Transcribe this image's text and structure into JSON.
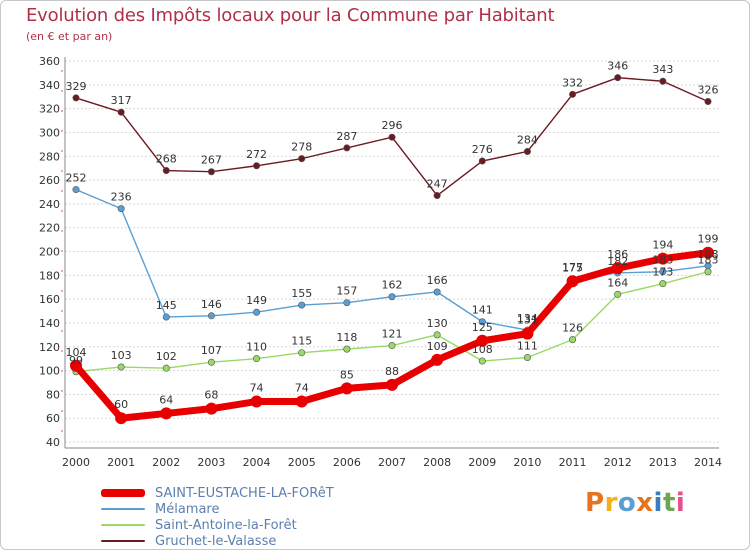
{
  "header": {
    "title": "Evolution des Impôts locaux pour la Commune par Habitant",
    "subtitle": "(en € et par an)"
  },
  "logo": {
    "text": "Proxiti",
    "colors": [
      "#e8731e",
      "#f2b01f",
      "#5a9fd4",
      "#e8731e",
      "#3a7cc0",
      "#6aa84f",
      "#e84e8a"
    ]
  },
  "chart_data": {
    "type": "line",
    "title": "Evolution des Impôts locaux pour la Commune par Habitant",
    "subtitle": "(en € et par an)",
    "xlabel": "",
    "ylabel": "",
    "x": [
      "2000",
      "2001",
      "2002",
      "2003",
      "2004",
      "2005",
      "2006",
      "2007",
      "2008",
      "2009",
      "2010",
      "2011",
      "2012",
      "2013",
      "2014"
    ],
    "ylim": [
      40,
      360
    ],
    "yticks": [
      "40",
      "60",
      "80",
      "100",
      "120",
      "140",
      "160",
      "180",
      "200",
      "220",
      "240",
      "260",
      "280",
      "300",
      "320",
      "340",
      "360"
    ],
    "grid": "horizontal",
    "legend_position": "bottom-left",
    "series": [
      {
        "name": "Gruchet-le-Valasse",
        "color": "#6b1a22",
        "values": [
          329,
          317,
          268,
          267,
          272,
          278,
          287,
          296,
          247,
          276,
          284,
          332,
          346,
          343,
          326
        ],
        "labels": [
          "329",
          "317",
          "268",
          "267",
          "272",
          "278",
          "287",
          "296",
          "247",
          "276",
          "284",
          "332",
          "346",
          "343",
          "326"
        ]
      },
      {
        "name": "Mélamare",
        "color": "#5a9fd4",
        "values": [
          252,
          236,
          145,
          146,
          149,
          155,
          157,
          162,
          166,
          141,
          134,
          177,
          182,
          183,
          188
        ],
        "labels": [
          "252",
          "236",
          "145",
          "146",
          "149",
          "155",
          "157",
          "162",
          "166",
          "141",
          "134",
          "177",
          "182",
          "183",
          "188"
        ]
      },
      {
        "name": "Saint-Antoine-la-Forêt",
        "color": "#99d966",
        "values": [
          99,
          103,
          102,
          107,
          110,
          115,
          118,
          121,
          130,
          108,
          111,
          126,
          164,
          173,
          183
        ],
        "labels": [
          "99",
          "103",
          "102",
          "107",
          "110",
          "115",
          "118",
          "121",
          "130",
          "108",
          "111",
          "126",
          "164",
          "173",
          "183"
        ]
      },
      {
        "name": "SAINT-EUSTACHE-LA-FORêT",
        "color": "#e80000",
        "values": [
          104,
          60,
          64,
          68,
          74,
          74,
          85,
          88,
          109,
          125,
          131,
          175,
          186,
          194,
          199
        ],
        "labels": [
          "104",
          "60",
          "64",
          "68",
          "74",
          "74",
          "85",
          "88",
          "109",
          "125",
          "131",
          "175",
          "186",
          "194",
          "199"
        ]
      }
    ],
    "legend": [
      "SAINT-EUSTACHE-LA-FORêT",
      "Mélamare",
      "Saint-Antoine-la-Forêt",
      "Gruchet-le-Valasse"
    ]
  }
}
